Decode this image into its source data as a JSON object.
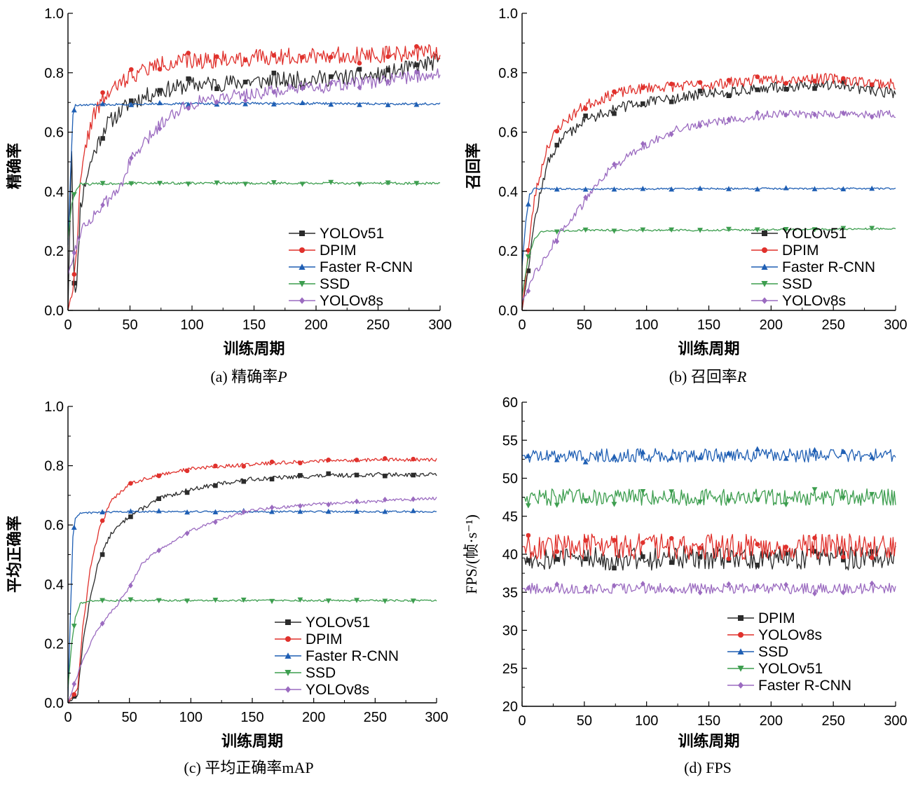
{
  "chart_data": [
    {
      "id": "a",
      "type": "line",
      "caption_prefix": "(a) 精确率",
      "caption_italic": "P",
      "xlabel": "训练周期",
      "ylabel": "精确率",
      "xlim": [
        0,
        300
      ],
      "ylim": [
        0.0,
        1.0
      ],
      "xticks": [
        "0",
        "50",
        "100",
        "150",
        "200",
        "250",
        "300"
      ],
      "yticks": [
        "0.0",
        "0.2",
        "0.4",
        "0.6",
        "0.8",
        "1.0"
      ],
      "legend_position": "bottom-right",
      "series": [
        {
          "name": "YOLOv51",
          "color": "#2b2b2b",
          "marker": "square",
          "noise": 0.028,
          "seed": 11,
          "points": [
            [
              0,
              0.0
            ],
            [
              3,
              0.55
            ],
            [
              5,
              0.1
            ],
            [
              7,
              0.07
            ],
            [
              10,
              0.35
            ],
            [
              15,
              0.45
            ],
            [
              20,
              0.52
            ],
            [
              30,
              0.62
            ],
            [
              50,
              0.7
            ],
            [
              75,
              0.74
            ],
            [
              100,
              0.76
            ],
            [
              150,
              0.77
            ],
            [
              200,
              0.78
            ],
            [
              250,
              0.79
            ],
            [
              300,
              0.84
            ]
          ]
        },
        {
          "name": "DPIM",
          "color": "#e0312c",
          "marker": "circle",
          "noise": 0.028,
          "seed": 22,
          "points": [
            [
              0,
              0.0
            ],
            [
              5,
              0.1
            ],
            [
              10,
              0.42
            ],
            [
              15,
              0.57
            ],
            [
              20,
              0.65
            ],
            [
              30,
              0.72
            ],
            [
              50,
              0.79
            ],
            [
              75,
              0.83
            ],
            [
              100,
              0.84
            ],
            [
              150,
              0.85
            ],
            [
              200,
              0.86
            ],
            [
              250,
              0.86
            ],
            [
              300,
              0.87
            ]
          ]
        },
        {
          "name": "Faster R-CNN",
          "color": "#1f5fb4",
          "marker": "triangle-up",
          "noise": 0.004,
          "seed": 33,
          "points": [
            [
              0,
              0.22
            ],
            [
              2,
              0.45
            ],
            [
              4,
              0.66
            ],
            [
              6,
              0.69
            ],
            [
              50,
              0.695
            ],
            [
              150,
              0.697
            ],
            [
              300,
              0.695
            ]
          ]
        },
        {
          "name": "SSD",
          "color": "#3d9e4f",
          "marker": "triangle-down",
          "noise": 0.004,
          "seed": 44,
          "points": [
            [
              0,
              0.24
            ],
            [
              3,
              0.36
            ],
            [
              6,
              0.4
            ],
            [
              10,
              0.425
            ],
            [
              50,
              0.428
            ],
            [
              150,
              0.428
            ],
            [
              300,
              0.428
            ]
          ]
        },
        {
          "name": "YOLOv8s",
          "color": "#9b6bc0",
          "marker": "diamond",
          "noise": 0.022,
          "seed": 55,
          "points": [
            [
              0,
              0.12
            ],
            [
              10,
              0.27
            ],
            [
              25,
              0.34
            ],
            [
              40,
              0.4
            ],
            [
              50,
              0.5
            ],
            [
              75,
              0.63
            ],
            [
              90,
              0.68
            ],
            [
              110,
              0.71
            ],
            [
              150,
              0.73
            ],
            [
              200,
              0.75
            ],
            [
              250,
              0.77
            ],
            [
              300,
              0.8
            ]
          ]
        }
      ]
    },
    {
      "id": "b",
      "type": "line",
      "caption_prefix": "(b) 召回率",
      "caption_italic": "R",
      "xlabel": "训练周期",
      "ylabel": "召回率",
      "xlim": [
        0,
        300
      ],
      "ylim": [
        0.0,
        1.0
      ],
      "xticks": [
        "0",
        "50",
        "100",
        "150",
        "200",
        "250",
        "300"
      ],
      "yticks": [
        "0.0",
        "0.2",
        "0.4",
        "0.6",
        "0.8",
        "1.0"
      ],
      "legend_position": "bottom-right",
      "series": [
        {
          "name": "YOLOv51",
          "color": "#2b2b2b",
          "marker": "square",
          "noise": 0.018,
          "seed": 12,
          "points": [
            [
              0,
              0.0
            ],
            [
              5,
              0.15
            ],
            [
              10,
              0.3
            ],
            [
              15,
              0.4
            ],
            [
              20,
              0.49
            ],
            [
              30,
              0.57
            ],
            [
              50,
              0.64
            ],
            [
              75,
              0.68
            ],
            [
              100,
              0.7
            ],
            [
              150,
              0.73
            ],
            [
              200,
              0.75
            ],
            [
              250,
              0.76
            ],
            [
              300,
              0.73
            ]
          ]
        },
        {
          "name": "DPIM",
          "color": "#e0312c",
          "marker": "circle",
          "noise": 0.018,
          "seed": 23,
          "points": [
            [
              0,
              0.0
            ],
            [
              5,
              0.2
            ],
            [
              10,
              0.38
            ],
            [
              20,
              0.55
            ],
            [
              30,
              0.62
            ],
            [
              50,
              0.69
            ],
            [
              75,
              0.73
            ],
            [
              100,
              0.75
            ],
            [
              150,
              0.76
            ],
            [
              200,
              0.78
            ],
            [
              250,
              0.78
            ],
            [
              300,
              0.76
            ]
          ]
        },
        {
          "name": "Faster R-CNN",
          "color": "#1f5fb4",
          "marker": "triangle-up",
          "noise": 0.003,
          "seed": 34,
          "points": [
            [
              0,
              0.15
            ],
            [
              3,
              0.3
            ],
            [
              6,
              0.39
            ],
            [
              10,
              0.41
            ],
            [
              50,
              0.408
            ],
            [
              150,
              0.41
            ],
            [
              300,
              0.41
            ]
          ]
        },
        {
          "name": "SSD",
          "color": "#3d9e4f",
          "marker": "triangle-down",
          "noise": 0.003,
          "seed": 45,
          "points": [
            [
              0,
              0.05
            ],
            [
              5,
              0.18
            ],
            [
              10,
              0.24
            ],
            [
              15,
              0.265
            ],
            [
              50,
              0.27
            ],
            [
              150,
              0.27
            ],
            [
              300,
              0.275
            ]
          ]
        },
        {
          "name": "YOLOv8s",
          "color": "#9b6bc0",
          "marker": "diamond",
          "noise": 0.014,
          "seed": 56,
          "points": [
            [
              0,
              0.03
            ],
            [
              10,
              0.12
            ],
            [
              20,
              0.19
            ],
            [
              30,
              0.26
            ],
            [
              40,
              0.31
            ],
            [
              50,
              0.36
            ],
            [
              60,
              0.43
            ],
            [
              75,
              0.49
            ],
            [
              100,
              0.56
            ],
            [
              125,
              0.61
            ],
            [
              150,
              0.63
            ],
            [
              200,
              0.66
            ],
            [
              250,
              0.66
            ],
            [
              300,
              0.66
            ]
          ]
        }
      ]
    },
    {
      "id": "c",
      "type": "line",
      "caption_prefix": "(c) 平均正确率mAP",
      "caption_italic": "",
      "xlabel": "训练周期",
      "ylabel": "平均正确率",
      "xlim": [
        0,
        300
      ],
      "ylim": [
        0.0,
        1.0
      ],
      "xticks": [
        "0",
        "50",
        "100",
        "150",
        "200",
        "250",
        "300"
      ],
      "yticks": [
        "0.0",
        "0.2",
        "0.4",
        "0.6",
        "0.8",
        "1.0"
      ],
      "legend_position": "bottom-right",
      "series": [
        {
          "name": "YOLOv51",
          "color": "#2b2b2b",
          "marker": "square",
          "noise": 0.007,
          "seed": 13,
          "points": [
            [
              0,
              0.0
            ],
            [
              8,
              0.03
            ],
            [
              12,
              0.2
            ],
            [
              18,
              0.35
            ],
            [
              25,
              0.48
            ],
            [
              35,
              0.57
            ],
            [
              50,
              0.63
            ],
            [
              75,
              0.69
            ],
            [
              100,
              0.72
            ],
            [
              125,
              0.74
            ],
            [
              150,
              0.755
            ],
            [
              200,
              0.765
            ],
            [
              250,
              0.77
            ],
            [
              300,
              0.77
            ]
          ]
        },
        {
          "name": "DPIM",
          "color": "#e0312c",
          "marker": "circle",
          "noise": 0.006,
          "seed": 24,
          "points": [
            [
              0,
              0.0
            ],
            [
              8,
              0.05
            ],
            [
              12,
              0.25
            ],
            [
              18,
              0.45
            ],
            [
              25,
              0.58
            ],
            [
              35,
              0.68
            ],
            [
              50,
              0.74
            ],
            [
              75,
              0.77
            ],
            [
              100,
              0.79
            ],
            [
              150,
              0.805
            ],
            [
              200,
              0.815
            ],
            [
              250,
              0.82
            ],
            [
              300,
              0.82
            ]
          ]
        },
        {
          "name": "Faster R-CNN",
          "color": "#1f5fb4",
          "marker": "triangle-up",
          "noise": 0.003,
          "seed": 35,
          "points": [
            [
              0,
              0.02
            ],
            [
              2,
              0.3
            ],
            [
              4,
              0.56
            ],
            [
              6,
              0.62
            ],
            [
              10,
              0.64
            ],
            [
              50,
              0.645
            ],
            [
              150,
              0.645
            ],
            [
              300,
              0.645
            ]
          ]
        },
        {
          "name": "SSD",
          "color": "#3d9e4f",
          "marker": "triangle-down",
          "noise": 0.003,
          "seed": 46,
          "points": [
            [
              0,
              0.05
            ],
            [
              3,
              0.2
            ],
            [
              6,
              0.29
            ],
            [
              10,
              0.335
            ],
            [
              20,
              0.345
            ],
            [
              50,
              0.345
            ],
            [
              150,
              0.345
            ],
            [
              300,
              0.345
            ]
          ]
        },
        {
          "name": "YOLOv8s",
          "color": "#9b6bc0",
          "marker": "diamond",
          "noise": 0.005,
          "seed": 57,
          "points": [
            [
              0,
              0.0
            ],
            [
              10,
              0.12
            ],
            [
              20,
              0.22
            ],
            [
              30,
              0.28
            ],
            [
              40,
              0.33
            ],
            [
              50,
              0.39
            ],
            [
              60,
              0.47
            ],
            [
              75,
              0.52
            ],
            [
              100,
              0.58
            ],
            [
              125,
              0.62
            ],
            [
              150,
              0.65
            ],
            [
              200,
              0.67
            ],
            [
              250,
              0.68
            ],
            [
              300,
              0.69
            ]
          ]
        }
      ]
    },
    {
      "id": "d",
      "type": "line",
      "caption_prefix": "(d) FPS",
      "caption_italic": "",
      "xlabel": "训练周期",
      "ylabel": "FPS/(帧·s⁻¹)",
      "xlim": [
        0,
        300
      ],
      "ylim": [
        20,
        60
      ],
      "xticks": [
        "0",
        "50",
        "100",
        "150",
        "200",
        "250",
        "300"
      ],
      "yticks": [
        "20",
        "25",
        "30",
        "35",
        "40",
        "45",
        "50",
        "55",
        "60"
      ],
      "legend_position": "bottom-right",
      "series": [
        {
          "name": "DPIM",
          "color": "#2b2b2b",
          "marker": "square",
          "noise": 1.6,
          "seed": 14,
          "points": [
            [
              0,
              39.5
            ],
            [
              150,
              39.5
            ],
            [
              300,
              39.5
            ]
          ]
        },
        {
          "name": "YOLOv8s",
          "color": "#e0312c",
          "marker": "circle",
          "noise": 1.7,
          "seed": 25,
          "points": [
            [
              0,
              41
            ],
            [
              150,
              41
            ],
            [
              300,
              41
            ]
          ]
        },
        {
          "name": "SSD",
          "color": "#1f5fb4",
          "marker": "triangle-up",
          "noise": 0.9,
          "seed": 36,
          "points": [
            [
              0,
              53
            ],
            [
              150,
              53
            ],
            [
              300,
              53
            ]
          ]
        },
        {
          "name": "YOLOv51",
          "color": "#3d9e4f",
          "marker": "triangle-down",
          "noise": 1.1,
          "seed": 47,
          "points": [
            [
              0,
              47.5
            ],
            [
              150,
              47.5
            ],
            [
              300,
              47.5
            ]
          ]
        },
        {
          "name": "Faster R-CNN",
          "color": "#9b6bc0",
          "marker": "diamond",
          "noise": 0.7,
          "seed": 58,
          "points": [
            [
              0,
              35.5
            ],
            [
              150,
              35.5
            ],
            [
              300,
              35.5
            ]
          ]
        }
      ]
    }
  ]
}
